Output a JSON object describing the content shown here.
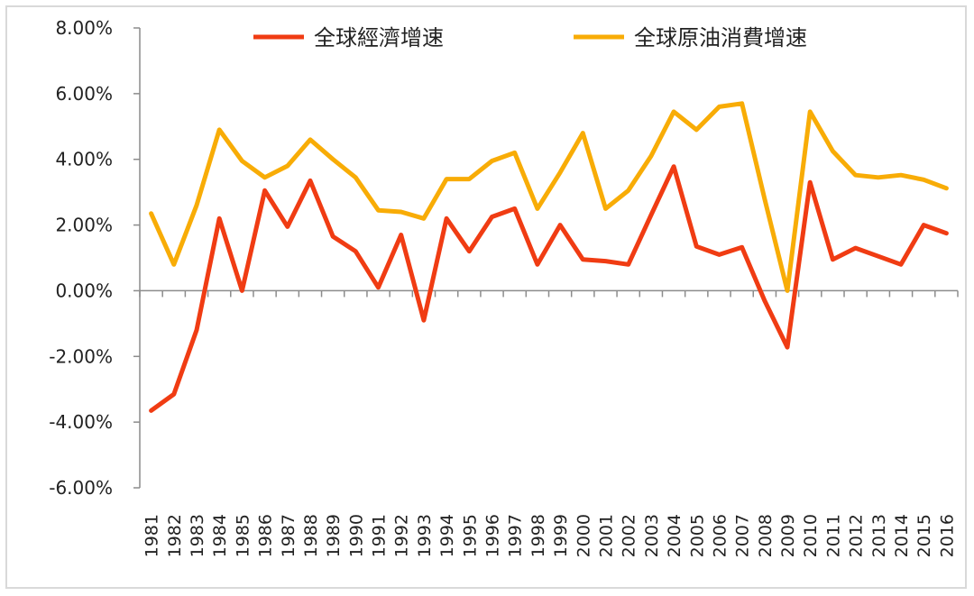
{
  "chart_data": {
    "type": "line",
    "title": "",
    "xlabel": "",
    "ylabel": "",
    "ylim": [
      -0.06,
      0.08
    ],
    "yticks": [
      "8.00%",
      "6.00%",
      "4.00%",
      "2.00%",
      "0.00%",
      "-2.00%",
      "-4.00%",
      "-6.00%"
    ],
    "ytick_values": [
      0.08,
      0.06,
      0.04,
      0.02,
      0.0,
      -0.02,
      -0.04,
      -0.06
    ],
    "grid": false,
    "legend_position": "top",
    "x": [
      "1981",
      "1982",
      "1983",
      "1984",
      "1985",
      "1986",
      "1987",
      "1988",
      "1989",
      "1990",
      "1991",
      "1992",
      "1993",
      "1994",
      "1995",
      "1996",
      "1997",
      "1998",
      "1999",
      "2000",
      "2001",
      "2002",
      "2003",
      "2004",
      "2005",
      "2006",
      "2007",
      "2008",
      "2009",
      "2010",
      "2011",
      "2012",
      "2013",
      "2014",
      "2015",
      "2016"
    ],
    "series": [
      {
        "name": "全球經濟增速",
        "color": "#f03c13",
        "values": [
          -0.0365,
          -0.0315,
          -0.012,
          0.022,
          0.0,
          0.0305,
          0.0195,
          0.0335,
          0.0165,
          0.012,
          0.001,
          0.017,
          -0.009,
          0.022,
          0.012,
          0.0225,
          0.025,
          0.008,
          0.02,
          0.0095,
          0.009,
          0.008,
          0.023,
          0.0378,
          0.0135,
          0.011,
          0.0132,
          -0.003,
          -0.0172,
          0.033,
          0.0095,
          0.013,
          0.0105,
          0.008,
          0.02,
          0.0175
        ]
      },
      {
        "name": "全球原油消費增速",
        "color": "#f8ac06",
        "values": [
          0.0235,
          0.008,
          0.026,
          0.049,
          0.0395,
          0.0345,
          0.038,
          0.046,
          0.04,
          0.0345,
          0.0245,
          0.024,
          0.022,
          0.034,
          0.034,
          0.0395,
          0.042,
          0.025,
          0.036,
          0.048,
          0.025,
          0.0305,
          0.041,
          0.0545,
          0.049,
          0.056,
          0.057,
          0.028,
          0.0,
          0.0545,
          0.0425,
          0.0352,
          0.0345,
          0.0352,
          0.0338,
          0.0312
        ]
      }
    ]
  }
}
